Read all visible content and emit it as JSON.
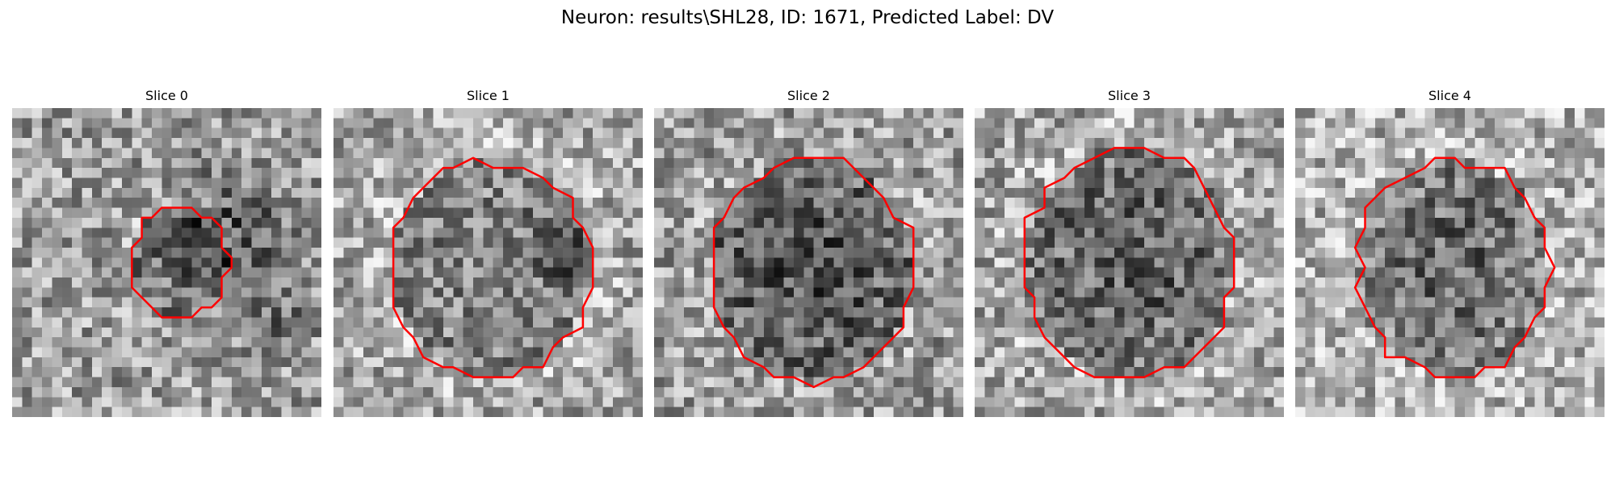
{
  "figure": {
    "title": "Neuron: results\\SHL28, ID: 1671, Predicted Label: DV"
  },
  "panels": [
    {
      "title": "Slice 0"
    },
    {
      "title": "Slice 1"
    },
    {
      "title": "Slice 2"
    },
    {
      "title": "Slice 3"
    },
    {
      "title": "Slice 4"
    }
  ],
  "colors": {
    "contour": "#ff0000",
    "background": "#ffffff"
  }
}
